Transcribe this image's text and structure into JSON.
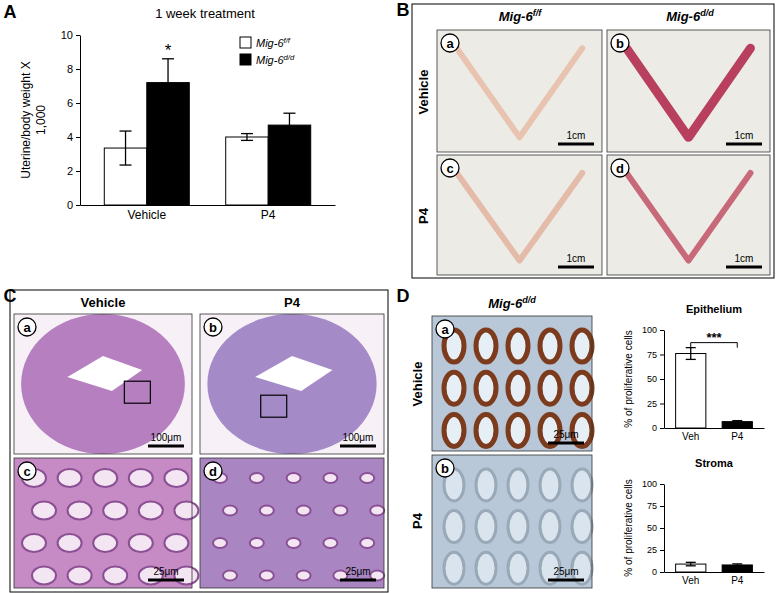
{
  "chart_data": [
    {
      "type": "bar",
      "title": "1 week treatment",
      "y_label": "Uterine/body weight X\n1,000",
      "categories": [
        "Vehicle",
        "P4"
      ],
      "series": [
        {
          "name": "Mig-6f/f",
          "color": "#ffffff",
          "values": [
            3.35,
            4.0
          ],
          "errors": [
            1.0,
            0.2
          ]
        },
        {
          "name": "Mig-6d/d",
          "color": "#000000",
          "values": [
            7.2,
            4.7
          ],
          "errors": [
            1.4,
            0.7
          ]
        }
      ],
      "ylim": [
        0,
        10
      ],
      "yticks": [
        0,
        2,
        4,
        6,
        8,
        10
      ],
      "legend": "upper right",
      "annotations": [
        {
          "text": "*",
          "category": "Vehicle",
          "series": "Mig-6d/d"
        }
      ]
    },
    {
      "type": "bar",
      "title": "Epithelium",
      "y_label": "% of proliferative cells",
      "categories": [
        "Veh",
        "P4"
      ],
      "values": [
        76,
        6.5
      ],
      "errors": [
        6,
        1
      ],
      "colors": [
        "#ffffff",
        "#000000"
      ],
      "ylim": [
        0,
        100
      ],
      "yticks": [
        0,
        25,
        50,
        75,
        100
      ],
      "annotations": [
        {
          "text": "***",
          "categories": [
            "Veh",
            "P4"
          ]
        }
      ]
    },
    {
      "type": "bar",
      "title": "Stroma",
      "y_label": "% of proliferative cells",
      "categories": [
        "Veh",
        "P4"
      ],
      "values": [
        9,
        8
      ],
      "errors": [
        2,
        1.2
      ],
      "colors": [
        "#ffffff",
        "#000000"
      ],
      "ylim": [
        0,
        100
      ],
      "yticks": [
        0,
        25,
        50,
        75,
        100
      ]
    }
  ],
  "panels": {
    "A": {
      "letter": "A"
    },
    "B": {
      "letter": "B",
      "columns": [
        "Mig-6f/f",
        "Mig-6d/d"
      ],
      "rows": [
        "Vehicle",
        "P4"
      ],
      "images": [
        {
          "label": "a",
          "scale_bar": "1cm"
        },
        {
          "label": "b",
          "scale_bar": "1cm"
        },
        {
          "label": "c",
          "scale_bar": "1cm"
        },
        {
          "label": "d",
          "scale_bar": "1cm"
        }
      ]
    },
    "C": {
      "letter": "C",
      "columns": [
        "Vehicle",
        "P4"
      ],
      "images": [
        {
          "label": "a",
          "scale_bar": "100μm"
        },
        {
          "label": "b",
          "scale_bar": "100μm"
        },
        {
          "label": "c",
          "scale_bar": "25μm"
        },
        {
          "label": "d",
          "scale_bar": "25μm"
        }
      ]
    },
    "D": {
      "letter": "D",
      "columns": [
        "Mig-6d/d"
      ],
      "rows": [
        "Vehicle",
        "P4"
      ],
      "images": [
        {
          "label": "a",
          "scale_bar": "25μm"
        },
        {
          "label": "b",
          "scale_bar": "25μm"
        }
      ]
    }
  }
}
